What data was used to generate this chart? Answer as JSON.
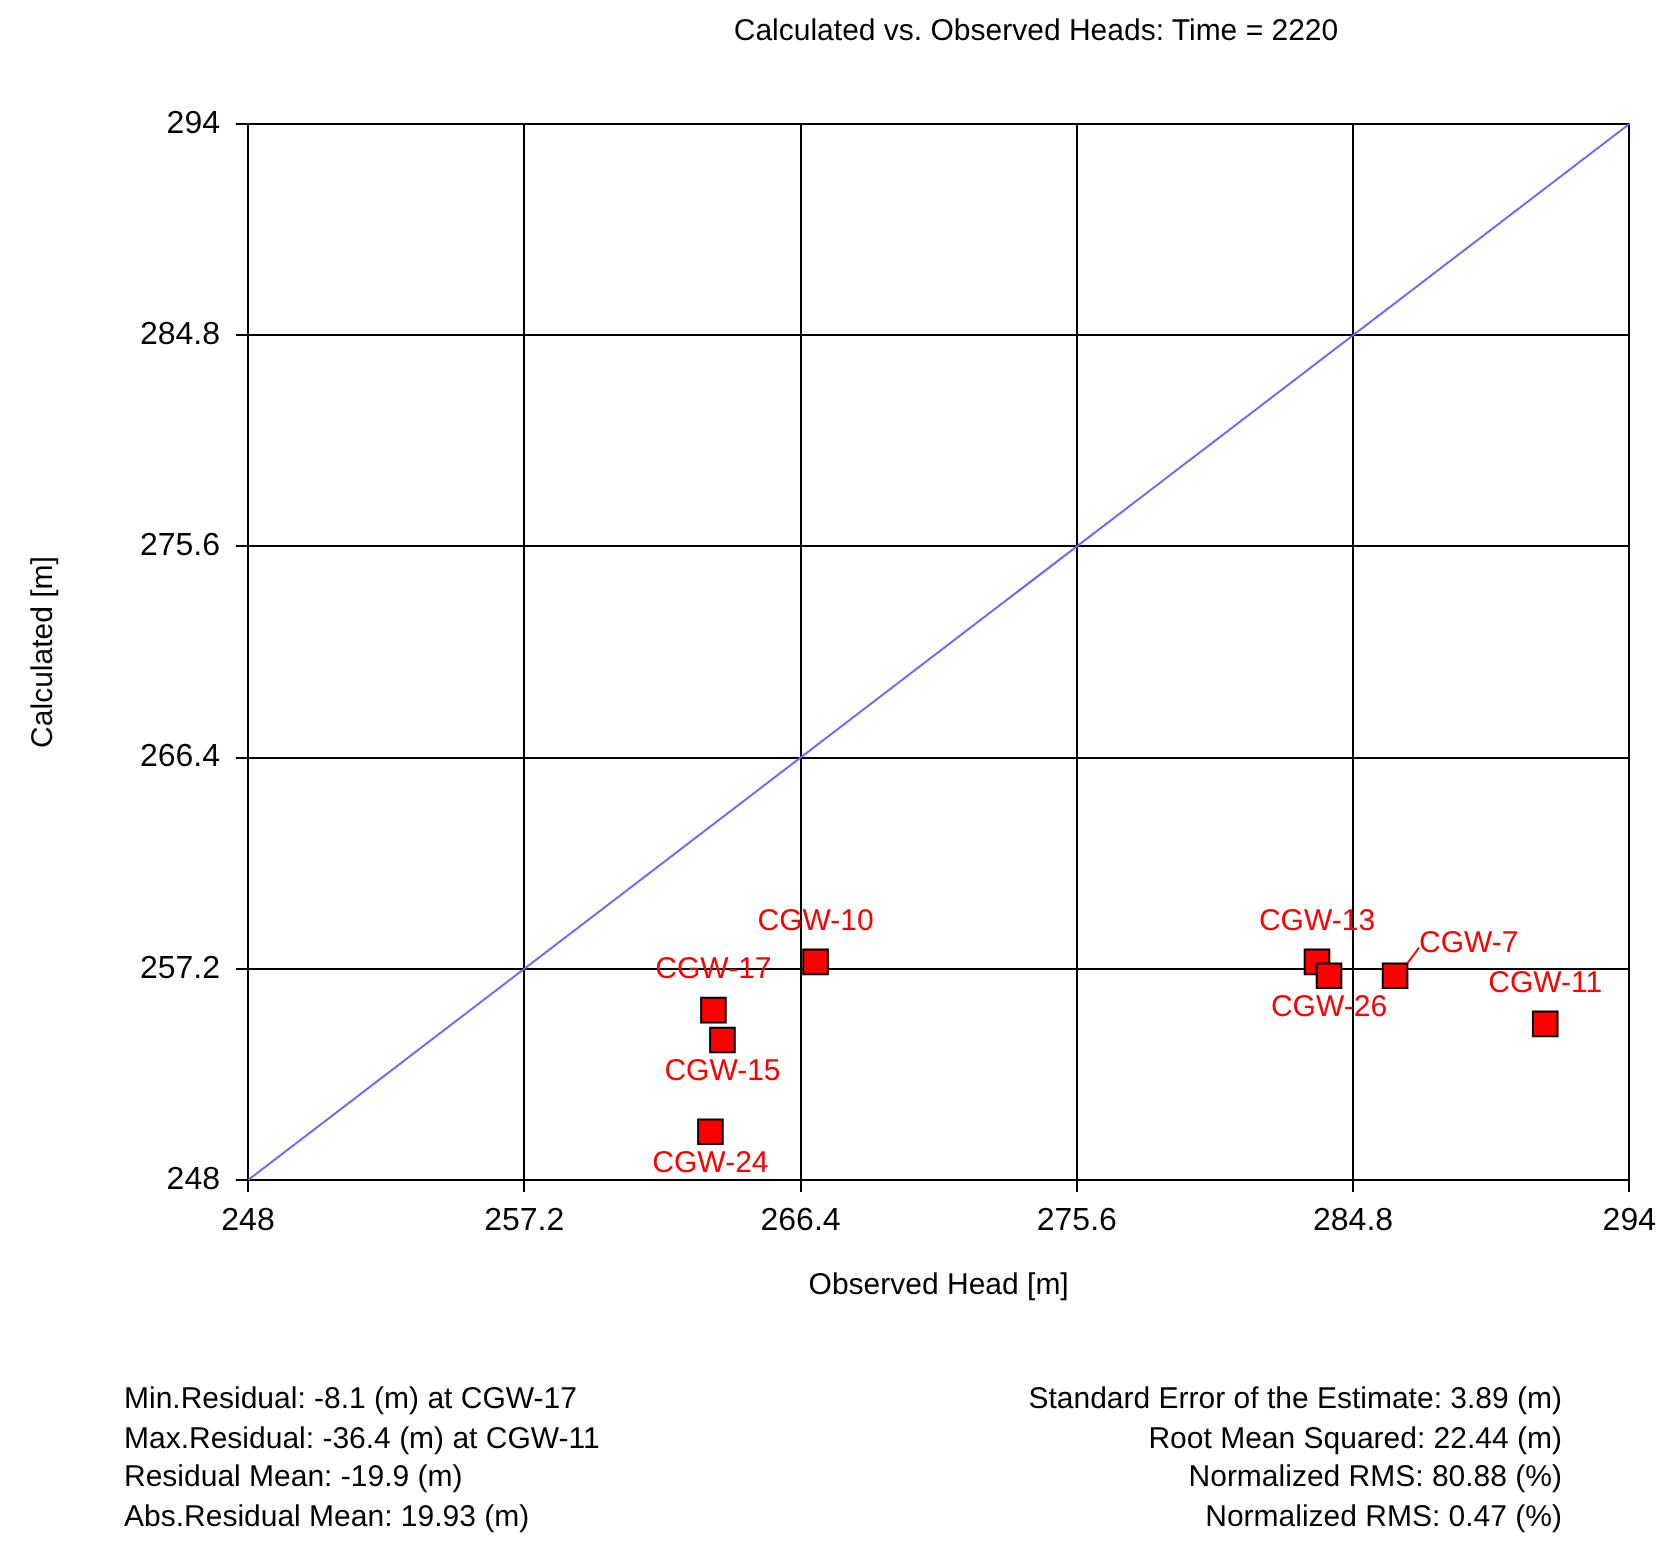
{
  "chart_data": {
    "type": "scatter",
    "title": "Calculated vs. Observed Heads: Time = 2220",
    "xlabel": "Observed Head [m]",
    "ylabel": "Calculated [m]",
    "series": [
      {
        "color": "#ff0000",
        "marker": "square",
        "x": [
          266.9,
          263.5,
          263.8,
          263.4,
          283.6,
          284.0,
          286.2,
          291.2
        ],
        "values": [
          257.5,
          255.4,
          254.1,
          250.1,
          257.5,
          256.9,
          256.9,
          254.8
        ]
      },
      {
        "type": "line",
        "color": "#6666ff",
        "x": [
          248,
          294
        ],
        "values": [
          248,
          294
        ]
      }
    ],
    "xlim": [
      248,
      294
    ],
    "ylim": [
      248,
      294
    ],
    "xticks": [
      248,
      257.2,
      266.4,
      275.6,
      284.8,
      294
    ],
    "yticks": [
      248,
      257.2,
      266.4,
      275.6,
      284.8,
      294
    ],
    "grid": true,
    "annotations": [
      "Min.Residual: -8.1 (m) at CGW-17",
      "Max.Residual: -36.4 (m) at CGW-11",
      "Residual Mean: -19.9 (m)",
      "Abs.Residual Mean: 19.93 (m)",
      "Standard Error of the Estimate: 3.89 (m)",
      "Root Mean Squared: 22.44 (m)",
      "Normalized RMS: 80.88 (%)",
      "Normalized RMS: 0.47 (%)",
      {
        "text": "CGW-10",
        "x": 266.9,
        "y": 257.5
      },
      {
        "text": "CGW-17",
        "x": 263.5,
        "y": 255.4
      },
      {
        "text": "CGW-15",
        "x": 263.8,
        "y": 254.1
      },
      {
        "text": "CGW-24",
        "x": 263.4,
        "y": 250.1
      },
      {
        "text": "CGW-13",
        "x": 283.6,
        "y": 257.5
      },
      {
        "text": "CGW-26",
        "x": 284.0,
        "y": 256.9
      },
      {
        "text": "CGW-7",
        "x": 286.2,
        "y": 256.9
      },
      {
        "text": "CGW-11",
        "x": 291.2,
        "y": 254.8
      }
    ]
  }
}
